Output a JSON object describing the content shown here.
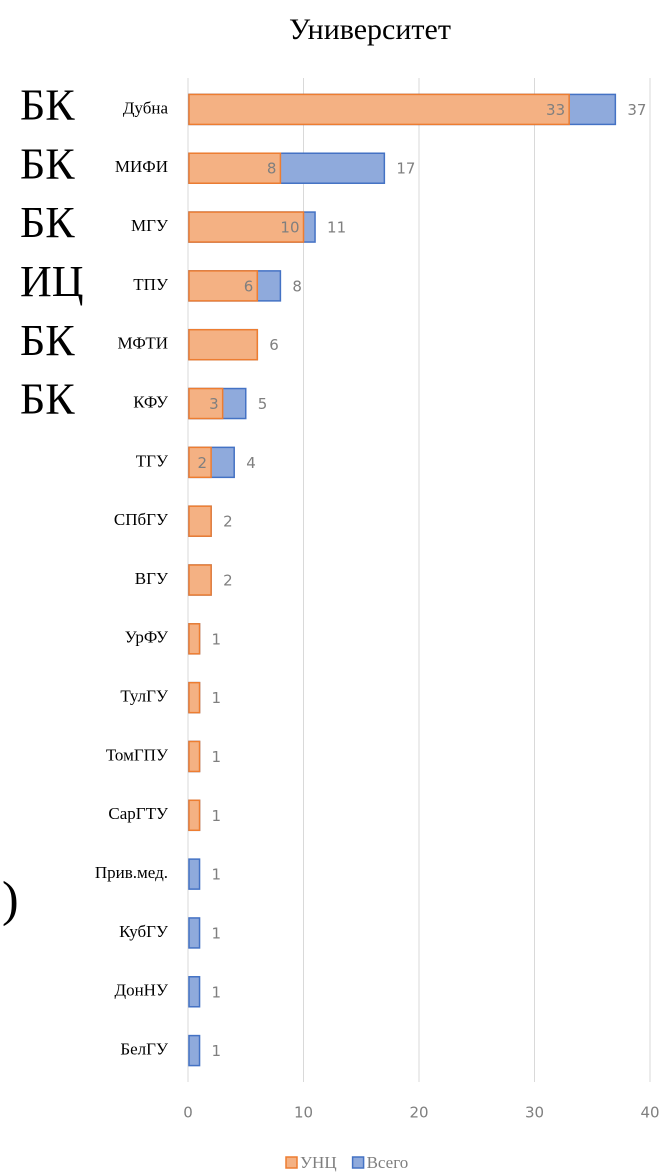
{
  "chart_data": {
    "type": "bar",
    "orientation": "horizontal",
    "overlap": true,
    "title": "Университет",
    "categories": [
      "Дубна",
      "МИФИ",
      "МГУ",
      "ТПУ",
      "МФТИ",
      "КФУ",
      "ТГУ",
      "СПбГУ",
      "ВГУ",
      "УрФУ",
      "ТулГУ",
      "ТомГПУ",
      "СарГТУ",
      "Прив.мед.",
      "КубГУ",
      "ДонНУ",
      "БелГУ"
    ],
    "annotations": [
      "БК",
      "БК",
      "БК",
      "ИЦ",
      "БК",
      "БК",
      null,
      null,
      null,
      null,
      null,
      null,
      null,
      ")",
      null,
      null,
      null
    ],
    "series": [
      {
        "name": "Всего",
        "color": "#8faadc",
        "edge": "#4472c4",
        "values": [
          37,
          17,
          11,
          8,
          6,
          5,
          4,
          2,
          2,
          1,
          1,
          1,
          1,
          1,
          1,
          1,
          1
        ]
      },
      {
        "name": "УНЦ",
        "color": "#f4b183",
        "edge": "#ed7d31",
        "values": [
          33,
          8,
          10,
          6,
          6,
          3,
          2,
          2,
          2,
          1,
          1,
          1,
          1,
          0,
          0,
          0,
          0
        ],
        "value_labels": [
          "33",
          "8",
          "10",
          "6",
          null,
          "3",
          "2",
          null,
          null,
          null,
          null,
          null,
          null,
          null,
          null,
          null,
          null
        ]
      }
    ],
    "legend_order": [
      1,
      0
    ],
    "xlim": [
      0,
      40
    ],
    "xticks": [
      0,
      10,
      20,
      30,
      40
    ],
    "grid": true
  }
}
